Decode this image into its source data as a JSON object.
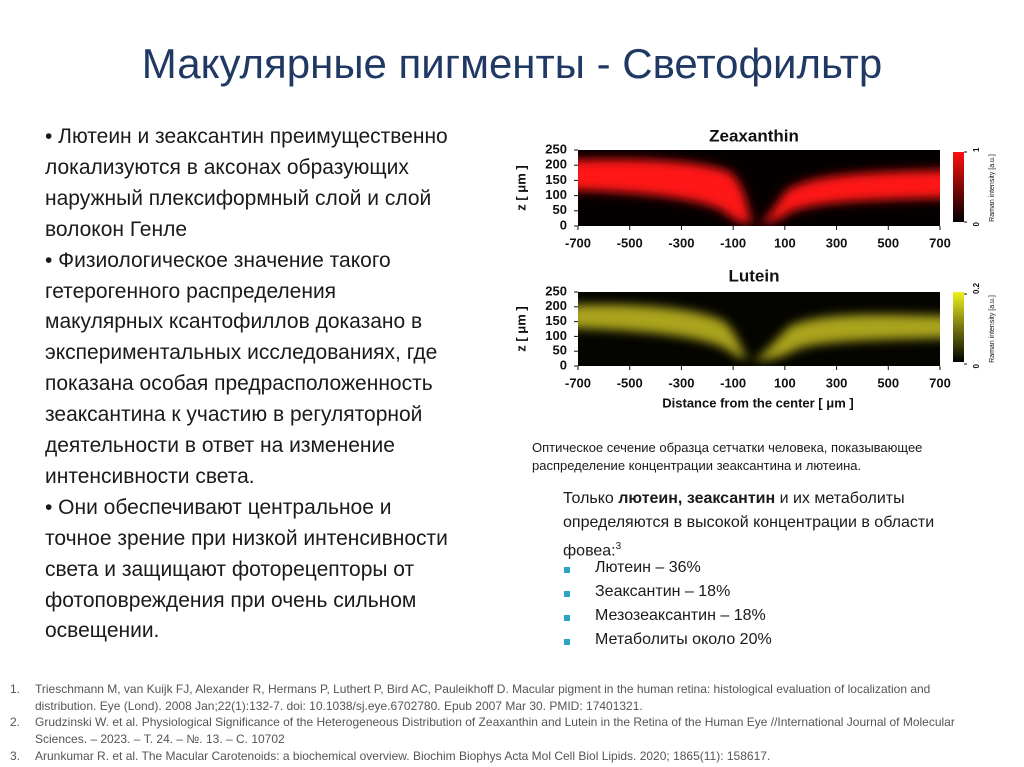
{
  "title": "Макулярные пигменты - Светофильтр",
  "bullets": [
    [
      "• Лютеин и зеаксантин преимущественно",
      "локализуются в аксонах образующих",
      "наружный плексиформный слой и слой",
      "волокон Генле"
    ],
    [
      "• Физиологическое значение такого",
      "гетерогенного распределения",
      "макулярных ксантофиллов доказано в",
      "экспериментальных исследованиях, где",
      "показана особая предрасположенность",
      "зеаксантина к участию в регуляторной",
      "деятельности в ответ на изменение",
      "интенсивности света."
    ],
    [
      "• Они обеспечивают центральное и",
      "точное зрение при низкой интенсивности",
      "света и защищают фоторецепторы от",
      "фотоповреждения при очень сильном",
      "освещении."
    ]
  ],
  "figure": {
    "panels": [
      {
        "title": "Zeaxanthin",
        "colorbar_ticks": [
          1,
          0
        ]
      },
      {
        "title": "Lutein",
        "colorbar_ticks": [
          0.2,
          0
        ]
      }
    ],
    "xticks": [
      -700,
      -500,
      -300,
      -100,
      100,
      300,
      500,
      700
    ],
    "yticks": [
      250,
      200,
      150,
      100,
      50,
      0
    ],
    "ylabel": "z [ μm ]",
    "xlabel": "Distance from the center [ μm ]",
    "colorbar_label": "Raman intensity [a.u.]",
    "caption": [
      "Оптическое сечение образца сетчатки человека, показывающее",
      "распределение концентрации зеаксантина и лютеина."
    ]
  },
  "summary": {
    "before": "Только ",
    "bold": "лютеин, зеаксантин",
    "after": " и их метаболиты определяются в высокой концентрации в области фовеа:",
    "sup": "3",
    "items": [
      "Лютеин – 36%",
      "Зеаксантин – 18%",
      "Мезозеаксантин – 18%",
      "Метаболиты около 20%"
    ]
  },
  "references": [
    {
      "num": "1.",
      "text": "Trieschmann M, van Kuijk FJ, Alexander R, Hermans P, Luthert P, Bird AC, Pauleikhoff D. Macular pigment in the human retina: histological evaluation of localization and distribution. Eye (Lond). 2008 Jan;22(1):132-7. doi: 10.1038/sj.eye.6702780. Epub 2007 Mar 30. PMID: 17401321."
    },
    {
      "num": "2.",
      "text": "Grudzinski W. et al. Physiological Significance of the Heterogeneous Distribution of Zeaxanthin and Lutein in the Retina of the Human Eye //International Journal of Molecular Sciences. – 2023. – Т. 24. – №. 13. – С. 10702"
    },
    {
      "num": "3.",
      "text": "Arunkumar R. et al. The Macular Carotenoids: a biochemical overview. Biochim Biophys Acta Mol Cell Biol Lipids. 2020; 1865(11): 158617."
    }
  ]
}
